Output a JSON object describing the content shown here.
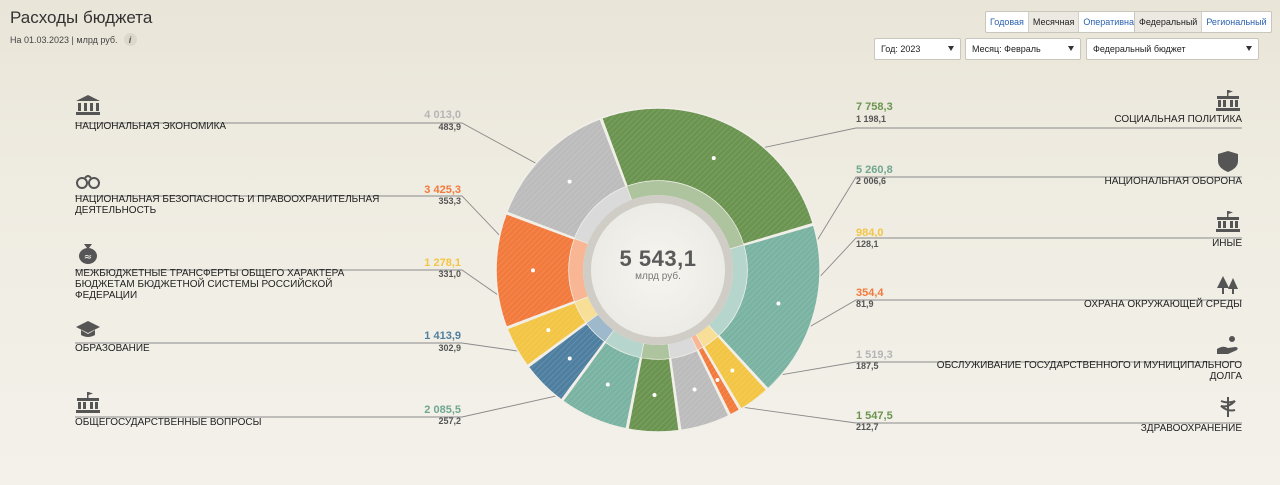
{
  "header": {
    "title": "Расходы бюджета",
    "subtitle": "На 01.03.2023 | млрд руб.",
    "info_icon": "info-icon"
  },
  "period_tabs": [
    {
      "label": "Годовая",
      "active": false
    },
    {
      "label": "Месячная",
      "active": true
    },
    {
      "label": "Оперативная",
      "active": false
    }
  ],
  "level_tabs": [
    {
      "label": "Федеральный",
      "active": true
    },
    {
      "label": "Региональный",
      "active": false
    }
  ],
  "filters": {
    "year": "Год: 2023",
    "month": "Месяц: Февраль",
    "budget": "Федеральный бюджет"
  },
  "chart_data": {
    "type": "pie",
    "variant": "donut",
    "center_total": "5 543,1",
    "center_unit": "млрд руб.",
    "colors": {
      "green_dark": "#6a9450",
      "teal": "#7ab3a2",
      "yellow": "#f3c544",
      "orange": "#f27a3c",
      "gray": "#bcbcbc",
      "blue": "#4f7fa0"
    },
    "categories": [
      {
        "key": "social",
        "label": "СОЦИАЛЬНАЯ ПОЛИТИКА",
        "plan": "7 758,3",
        "fact": "1 198,1",
        "plan_value": 7758.3,
        "fact_value": 1198.1,
        "color": "#6a9450",
        "icon": "social-building-icon"
      },
      {
        "key": "defense",
        "label": "НАЦИОНАЛЬНАЯ ОБОРОНА",
        "plan": "5 260,8",
        "fact": "2 006,6",
        "plan_value": 5260.8,
        "fact_value": 2006.6,
        "color": "#7ab3a2",
        "icon": "shield-icon"
      },
      {
        "key": "other",
        "label": "ИНЫЕ",
        "plan": "984,0",
        "fact": "128,1",
        "plan_value": 984.0,
        "fact_value": 128.1,
        "color": "#f3c544",
        "icon": "building-icon"
      },
      {
        "key": "environment",
        "label": "ОХРАНА ОКРУЖАЮЩЕЙ СРЕДЫ",
        "plan": "354,4",
        "fact": "81,9",
        "plan_value": 354.4,
        "fact_value": 81.9,
        "color": "#f27a3c",
        "icon": "trees-icon"
      },
      {
        "key": "debt",
        "label": "ОБСЛУЖИВАНИЕ ГОСУДАРСТВЕННОГО И МУНИЦИПАЛЬНОГО ДОЛГА",
        "plan": "1 519,3",
        "fact": "187,5",
        "plan_value": 1519.3,
        "fact_value": 187.5,
        "color": "#bcbcbc",
        "icon": "hand-coins-icon"
      },
      {
        "key": "health",
        "label": "ЗДРАВООХРАНЕНИЕ",
        "plan": "1 547,5",
        "fact": "212,7",
        "plan_value": 1547.5,
        "fact_value": 212.7,
        "color": "#6a9450",
        "icon": "caduceus-icon"
      },
      {
        "key": "general",
        "label": "ОБЩЕГОСУДАРСТВЕННЫЕ ВОПРОСЫ",
        "plan": "2 085,5",
        "fact": "257,2",
        "plan_value": 2085.5,
        "fact_value": 257.2,
        "color": "#7ab3a2",
        "icon": "government-icon"
      },
      {
        "key": "education",
        "label": "ОБРАЗОВАНИЕ",
        "plan": "1 413,9",
        "fact": "302,9",
        "plan_value": 1413.9,
        "fact_value": 302.9,
        "color": "#4f7fa0",
        "icon": "graduation-cap-icon"
      },
      {
        "key": "transfers",
        "label": "МЕЖБЮДЖЕТНЫЕ ТРАНСФЕРТЫ ОБЩЕГО ХАРАКТЕРА БЮДЖЕТАМ БЮДЖЕТНОЙ СИСТЕМЫ РОССИЙСКОЙ ФЕДЕРАЦИИ",
        "plan": "1 278,1",
        "fact": "331,0",
        "plan_value": 1278.1,
        "fact_value": 331.0,
        "color": "#f3c544",
        "icon": "money-bag-icon"
      },
      {
        "key": "security",
        "label": "НАЦИОНАЛЬНАЯ БЕЗОПАСНОСТЬ И ПРАВООХРАНИТЕЛЬНАЯ ДЕЯТЕЛЬНОСТЬ",
        "plan": "3 425,3",
        "fact": "353,3",
        "plan_value": 3425.3,
        "fact_value": 353.3,
        "color": "#f27a3c",
        "icon": "handcuffs-icon"
      },
      {
        "key": "economy",
        "label": "НАЦИОНАЛЬНАЯ ЭКОНОМИКА",
        "plan": "4 013,0",
        "fact": "483,9",
        "plan_value": 4013.0,
        "fact_value": 483.9,
        "color": "#bcbcbc",
        "icon": "bank-icon"
      }
    ]
  }
}
